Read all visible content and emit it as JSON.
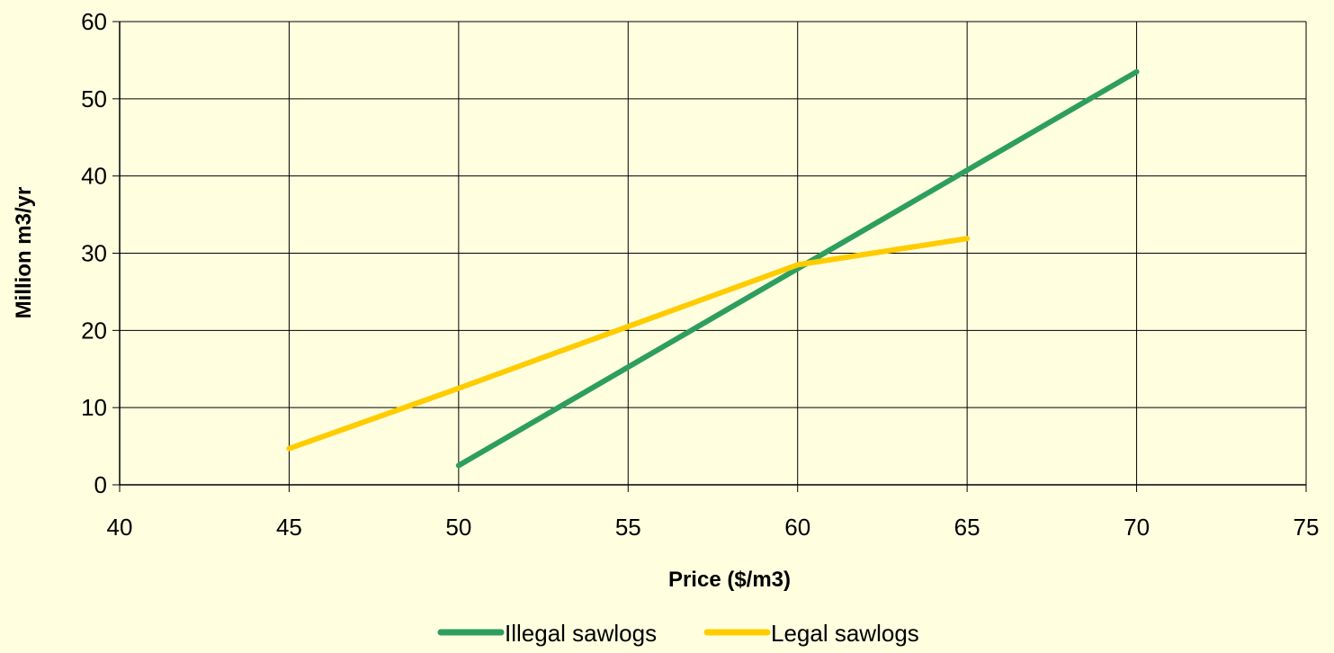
{
  "chart_data": {
    "type": "line",
    "xlabel": "Price ($/m3)",
    "ylabel": "Million m3/yr",
    "xlim": [
      40,
      75
    ],
    "ylim": [
      0,
      60
    ],
    "xticks": [
      40,
      45,
      50,
      55,
      60,
      65,
      70,
      75
    ],
    "yticks": [
      0,
      10,
      20,
      30,
      40,
      50,
      60
    ],
    "grid": true,
    "legend_placement": "bottom-center",
    "background_color": "#ffffe0",
    "series": [
      {
        "name": "Illegal sawlogs",
        "color": "#2e9e5e",
        "x": [
          50,
          70
        ],
        "y": [
          2.5,
          53.5
        ]
      },
      {
        "name": "Legal sawlogs",
        "color": "#ffcc00",
        "x": [
          45,
          50,
          55,
          60,
          65
        ],
        "y": [
          4.7,
          12.5,
          20.5,
          28.5,
          31.9
        ]
      }
    ]
  }
}
